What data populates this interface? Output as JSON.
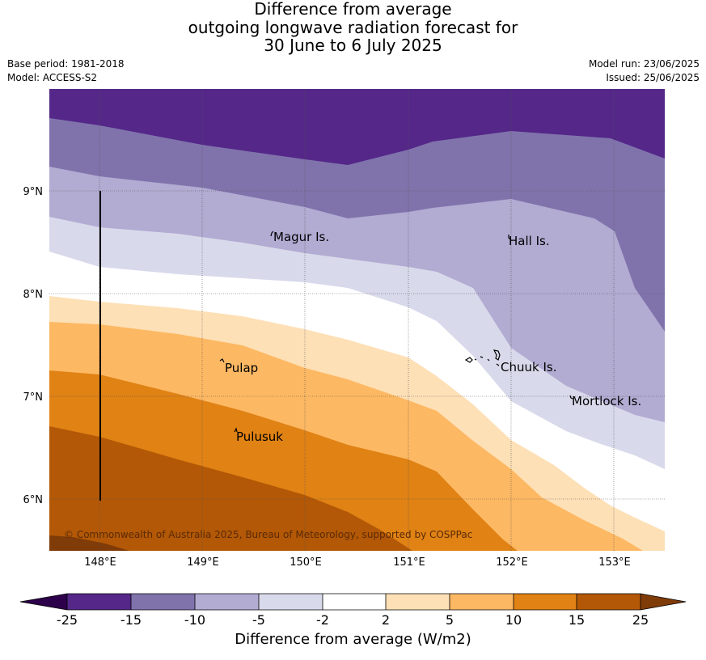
{
  "title": {
    "line1": "Difference from average",
    "line2": "outgoing longwave radiation forecast for",
    "line3": "30 June to 6 July 2025"
  },
  "meta": {
    "base_period": "Base period: 1981-2018",
    "model": "Model: ACCESS-S2",
    "model_run": "Model run: 23/06/2025",
    "issued": "Issued: 25/06/2025"
  },
  "map": {
    "lon_ticks": [
      "148°E",
      "149°E",
      "150°E",
      "151°E",
      "152°E",
      "153°E"
    ],
    "lat_ticks": [
      "9°N",
      "8°N",
      "7°N",
      "6°N"
    ],
    "places": [
      "Magur Is.",
      "Hall Is.",
      "Pulap",
      "Chuuk Is.",
      "Mortlock Is.",
      "Pulusuk"
    ],
    "copyright": "© Commonwealth of Australia 2025, Bureau of Meteorology, supported by COSPPac"
  },
  "colorbar": {
    "title": "Difference from average (W/m2)",
    "tick_labels": [
      "-25",
      "-15",
      "-10",
      "-5",
      "-2",
      "2",
      "5",
      "10",
      "15",
      "25"
    ],
    "colors": [
      "#2d004b",
      "#542788",
      "#8073ac",
      "#b2abd2",
      "#d8daeb",
      "#ffffff",
      "#fee0b6",
      "#fdb863",
      "#e08214",
      "#b35806",
      "#7f3b08"
    ]
  }
}
